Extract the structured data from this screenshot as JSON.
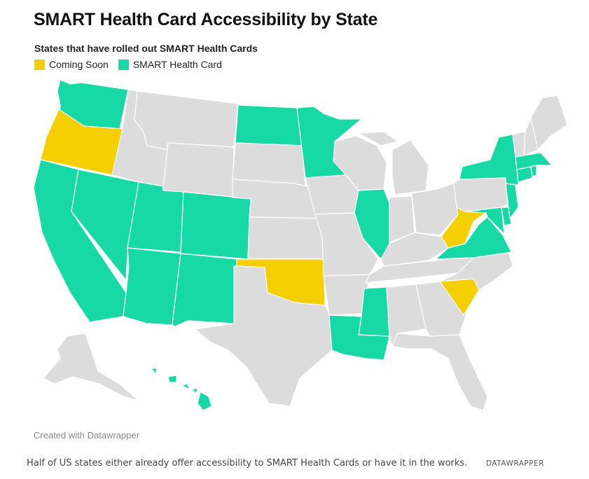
{
  "title": "SMART Health Card Accessibility by State",
  "subtitle": "States that have rolled out SMART Health Cards",
  "legend": [
    {
      "label": "Coming Soon",
      "color": "#f5cf00"
    },
    {
      "label": "SMART Health Card",
      "color": "#16d9a5"
    }
  ],
  "colors": {
    "default": "#dcdcdc",
    "coming_soon": "#f5cf00",
    "smart_health_card": "#16d9a5",
    "border": "#ffffff"
  },
  "states": {
    "smart_health_card": [
      "WA",
      "CA",
      "NV",
      "UT",
      "AZ",
      "CO",
      "NM",
      "ND",
      "MN",
      "IL",
      "LA",
      "MS",
      "NY",
      "NJ",
      "MD",
      "DE",
      "VA",
      "CT",
      "RI",
      "MA",
      "HI"
    ],
    "coming_soon": [
      "OR",
      "OK",
      "WV",
      "SC"
    ]
  },
  "credit": "Created with Datawrapper",
  "caption": "Half of US states either already offer accessibility to SMART Health Cards or have it in the works.",
  "source": "DATAWRAPPER"
}
